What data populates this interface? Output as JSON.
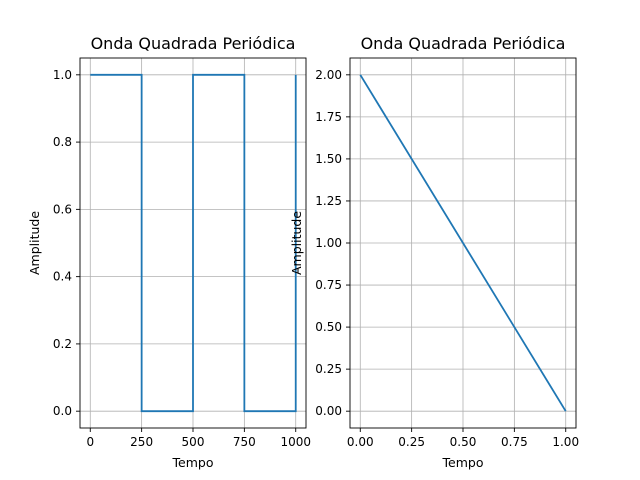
{
  "colors": {
    "series": "#1f77b4",
    "grid": "#b0b0b0"
  },
  "chart_data": [
    {
      "type": "line",
      "title": "Onda Quadrada Periódica",
      "xlabel": "Tempo",
      "ylabel": "Amplitude",
      "xlim": [
        -50,
        1050
      ],
      "ylim": [
        -0.05,
        1.05
      ],
      "xticks": [
        0,
        250,
        500,
        750,
        1000
      ],
      "xtick_labels": [
        "0",
        "250",
        "500",
        "750",
        "1000"
      ],
      "yticks": [
        0.0,
        0.2,
        0.4,
        0.6,
        0.8,
        1.0
      ],
      "ytick_labels": [
        "0.0",
        "0.2",
        "0.4",
        "0.6",
        "0.8",
        "1.0"
      ],
      "grid": true,
      "series": [
        {
          "x": [
            0,
            250,
            250,
            500,
            500,
            750,
            750,
            1000,
            1000
          ],
          "y": [
            1,
            1,
            0,
            0,
            1,
            1,
            0,
            0,
            1
          ]
        }
      ]
    },
    {
      "type": "line",
      "title": "Onda Quadrada Periódica",
      "xlabel": "Tempo",
      "ylabel": "Amplitude",
      "xlim": [
        -0.05,
        1.05
      ],
      "ylim": [
        -0.1,
        2.1
      ],
      "xticks": [
        0.0,
        0.25,
        0.5,
        0.75,
        1.0
      ],
      "xtick_labels": [
        "0.00",
        "0.25",
        "0.50",
        "0.75",
        "1.00"
      ],
      "yticks": [
        0.0,
        0.25,
        0.5,
        0.75,
        1.0,
        1.25,
        1.5,
        1.75,
        2.0
      ],
      "ytick_labels": [
        "0.00",
        "0.25",
        "0.50",
        "0.75",
        "1.00",
        "1.25",
        "1.50",
        "1.75",
        "2.00"
      ],
      "grid": true,
      "series": [
        {
          "x": [
            0,
            1
          ],
          "y": [
            2,
            0
          ]
        }
      ]
    }
  ]
}
